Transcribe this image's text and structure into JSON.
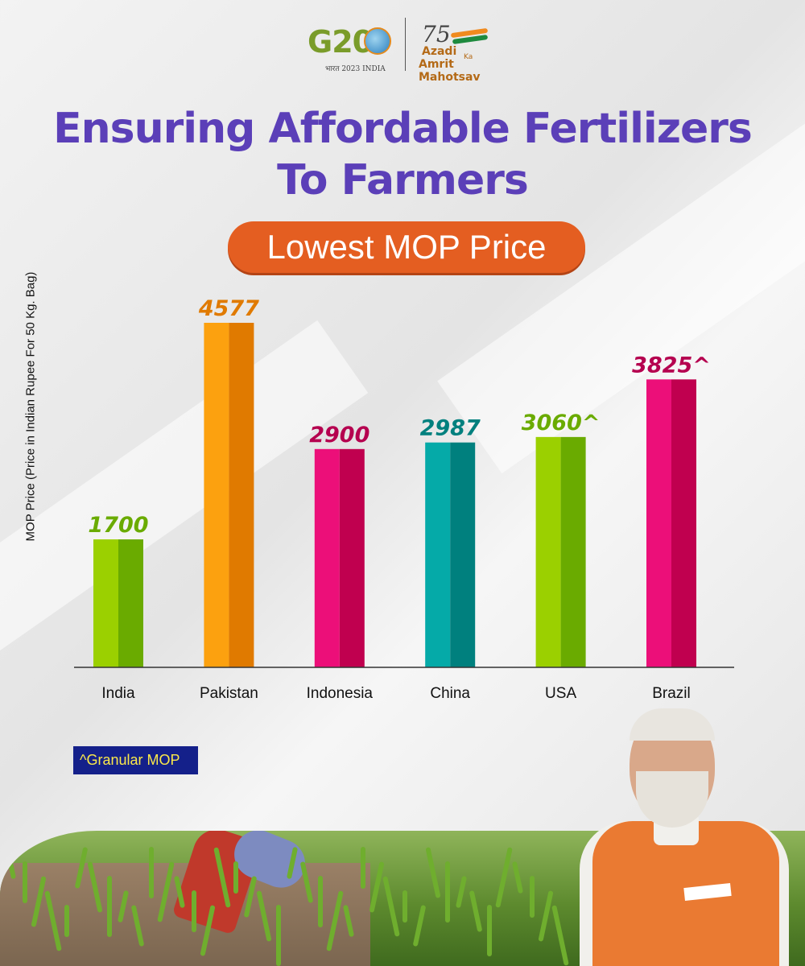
{
  "logos": {
    "g20_text": "G20",
    "g20_sub": "भारत 2023 INDIA",
    "azadi_number": "75",
    "azadi_line1": "Azadi",
    "azadi_ka": "Ka",
    "azadi_line2": "Amrit Mahotsav"
  },
  "title_line1": "Ensuring Affordable Fertilizers",
  "title_line2": "To Farmers",
  "subtitle": "Lowest MOP Price",
  "footnote": "^Granular MOP",
  "chart_data": {
    "type": "bar",
    "title": "Lowest MOP Price",
    "ylabel": "MOP Price (Price in Indian Rupee For 50 Kg. Bag)",
    "xlabel": "",
    "categories": [
      "India",
      "Pakistan",
      "Indonesia",
      "China",
      "USA",
      "Brazil"
    ],
    "values": [
      1700,
      4577,
      2900,
      2987,
      3060,
      3825
    ],
    "value_labels": [
      "1700",
      "4577",
      "2900",
      "2987",
      "3060^",
      "3825^"
    ],
    "ylim": [
      0,
      4577
    ],
    "grid": false,
    "legend": "none",
    "colors": [
      {
        "light": "#9bd000",
        "dark": "#6aab00",
        "label": "#6aab00"
      },
      {
        "light": "#fca10f",
        "dark": "#e07a00",
        "label": "#e07a00"
      },
      {
        "light": "#ec0f79",
        "dark": "#c0004f",
        "label": "#b5004f"
      },
      {
        "light": "#05aaa8",
        "dark": "#00807e",
        "label": "#00807e"
      },
      {
        "light": "#9bd000",
        "dark": "#6aab00",
        "label": "#6aab00"
      },
      {
        "light": "#ec0f79",
        "dark": "#c0004f",
        "label": "#b5004f"
      }
    ]
  }
}
